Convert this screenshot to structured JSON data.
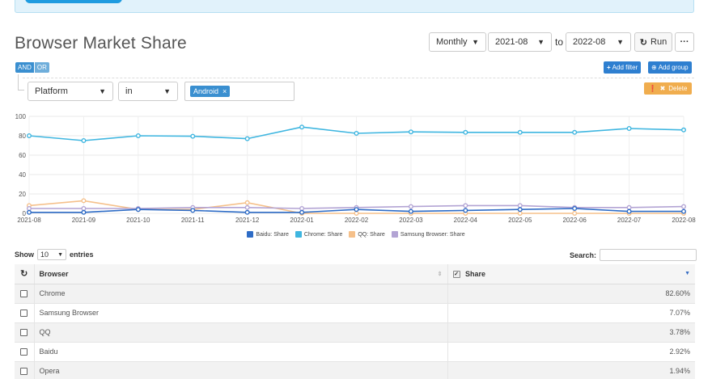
{
  "page": {
    "title": "Browser Market Share"
  },
  "controls": {
    "interval": "Monthly",
    "from": "2021-08",
    "to_label": "to",
    "to": "2022-08",
    "run_label": "Run",
    "more_label": "···"
  },
  "filters": {
    "and_label": "AND",
    "or_label": "OR",
    "add_filter_label": "Add filter",
    "add_group_label": "Add group",
    "delete_label": "Delete",
    "field": "Platform",
    "operator": "in",
    "value_chip": "Android",
    "chip_remove": "×"
  },
  "colors": {
    "baidu": "#2e6cc6",
    "chrome": "#3fb6e0",
    "qq": "#f5c08a",
    "samsung": "#b3a4d4"
  },
  "chart_data": {
    "type": "line",
    "x": [
      "2021-08",
      "2021-09",
      "2021-10",
      "2021-11",
      "2021-12",
      "2022-01",
      "2022-02",
      "2022-03",
      "2022-04",
      "2022-05",
      "2022-06",
      "2022-07",
      "2022-08"
    ],
    "ylim": [
      0,
      100
    ],
    "yticks": [
      0,
      20,
      40,
      60,
      80,
      100
    ],
    "series": [
      {
        "name": "Baidu: Share",
        "color_key": "baidu",
        "values": [
          1,
          1,
          4,
          3,
          1,
          1,
          4,
          2,
          3,
          4,
          5,
          2,
          2
        ]
      },
      {
        "name": "Chrome: Share",
        "color_key": "chrome",
        "values": [
          80,
          75,
          80,
          79.5,
          77,
          89,
          82.5,
          84,
          83.5,
          83.5,
          83.5,
          87.5,
          86
        ]
      },
      {
        "name": "QQ: Share",
        "color_key": "qq",
        "values": [
          8,
          13,
          4,
          4,
          11,
          0,
          0,
          0,
          0,
          0,
          0,
          0,
          0
        ]
      },
      {
        "name": "Samsung Browser: Share",
        "color_key": "samsung",
        "values": [
          5,
          5,
          5,
          6,
          6,
          5,
          6,
          7,
          8,
          8,
          6,
          6,
          7
        ]
      }
    ]
  },
  "table": {
    "show_label": "Show",
    "length": "10",
    "entries_label": "entries",
    "search_label": "Search:",
    "columns": [
      "Browser",
      "Share"
    ],
    "rows": [
      {
        "browser": "Chrome",
        "share": "82.60%"
      },
      {
        "browser": "Samsung Browser",
        "share": "7.07%"
      },
      {
        "browser": "QQ",
        "share": "3.78%"
      },
      {
        "browser": "Baidu",
        "share": "2.92%"
      },
      {
        "browser": "Opera",
        "share": "1.94%"
      }
    ]
  }
}
